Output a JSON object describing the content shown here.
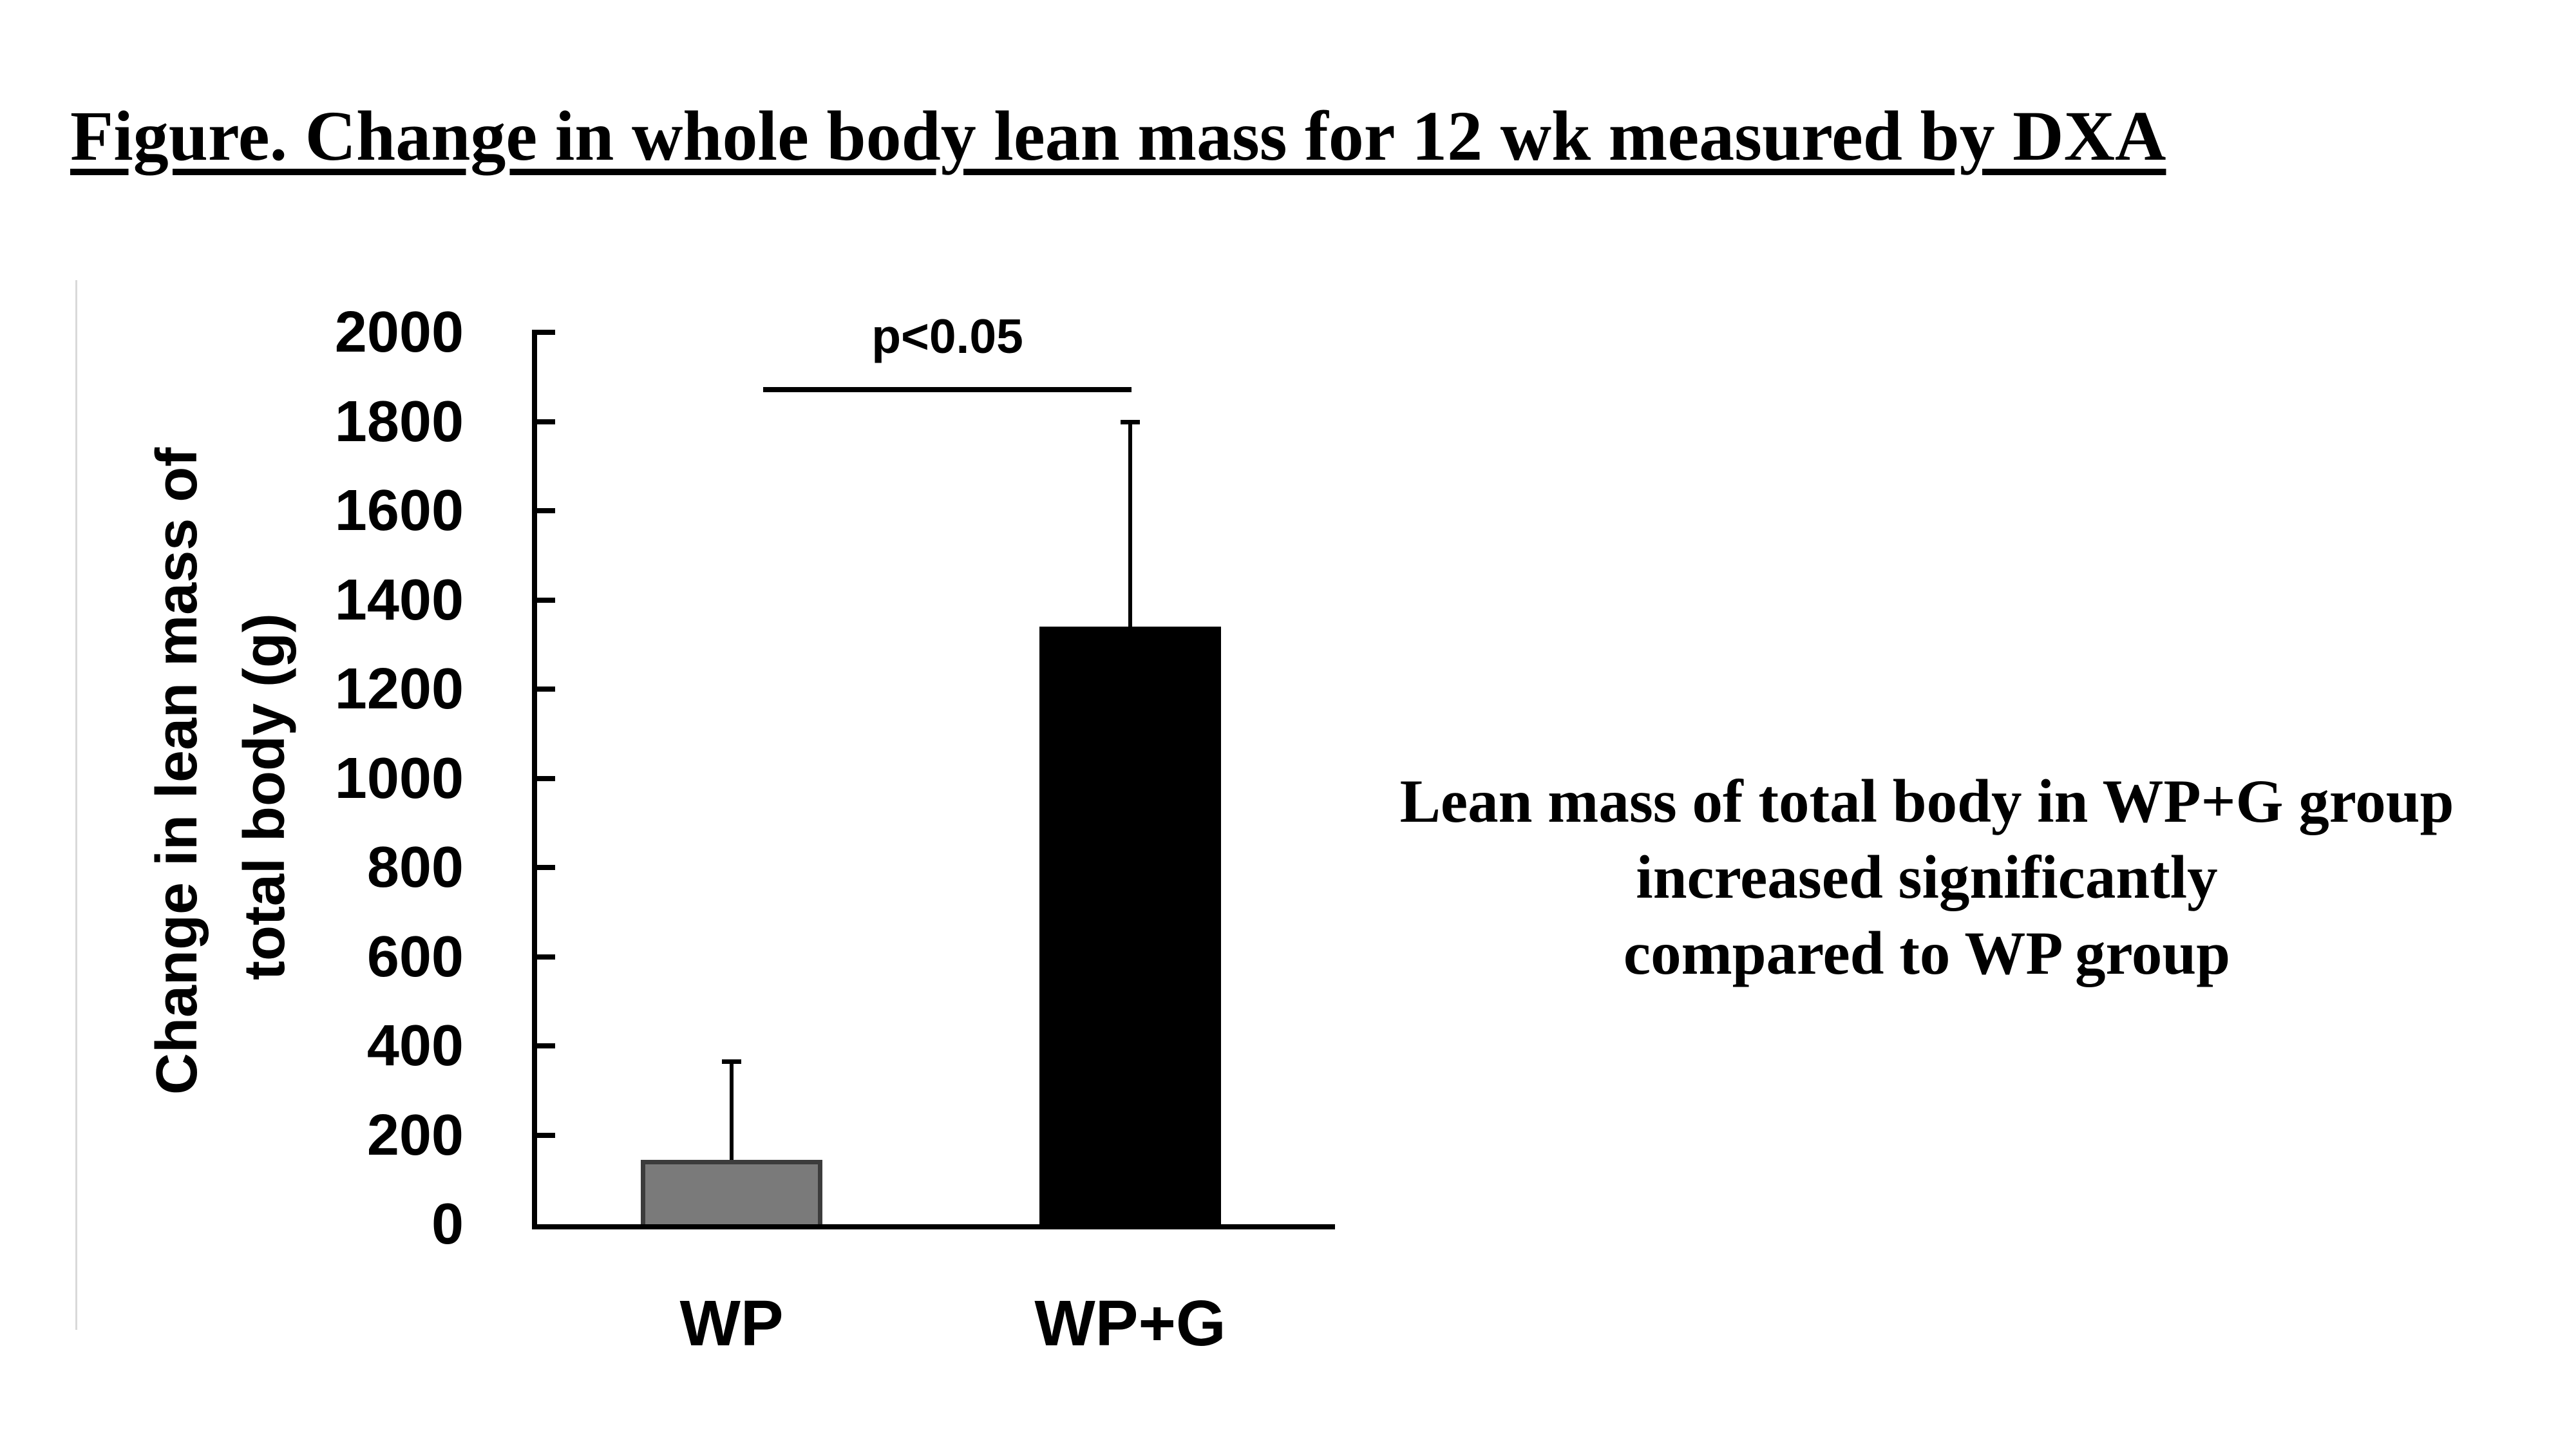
{
  "title": "Figure. Change in whole body lean mass for 12 wk measured by DXA",
  "annotation": {
    "line1": "Lean mass of total body in WP+G group",
    "line2": "increased significantly",
    "line3": "compared to WP group"
  },
  "chart_data": {
    "type": "bar",
    "categories": [
      "WP",
      "WP+G"
    ],
    "values": [
      145,
      1340
    ],
    "error_bar_tops": [
      365,
      1800
    ],
    "bar_colors": [
      "#7a7a7a",
      "#000000"
    ],
    "bar_border_colors": [
      "#3c3c3c",
      "#000000"
    ],
    "ylabel_line1": "Change in lean mass of",
    "ylabel_line2": "total body (g)",
    "ylim": [
      0,
      2000
    ],
    "yticks": [
      0,
      200,
      400,
      600,
      800,
      1000,
      1200,
      1400,
      1600,
      1800,
      2000
    ],
    "grid": "off",
    "legend": "none",
    "significance": {
      "label": "p<0.05",
      "between": [
        "WP",
        "WP+G"
      ]
    }
  }
}
